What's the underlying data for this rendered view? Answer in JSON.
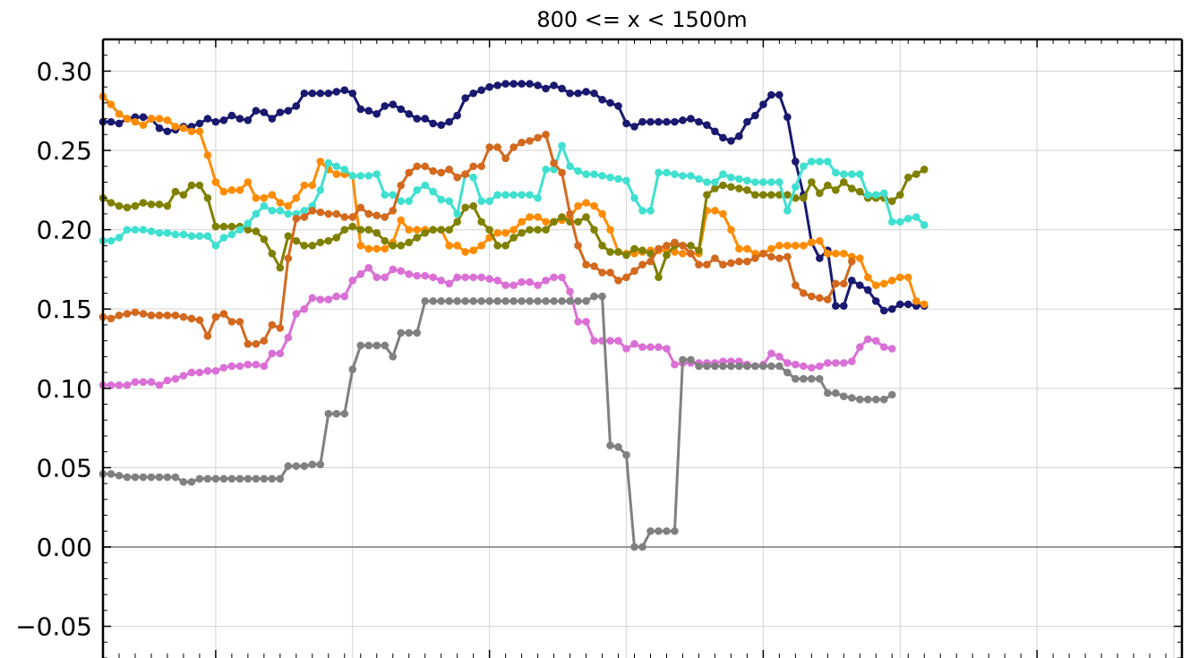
{
  "chart_data": {
    "type": "line",
    "title": "800 <= x < 1500m",
    "xlabel": "",
    "ylabel": "",
    "ylim": [
      -0.07,
      0.32
    ],
    "xlim": [
      0,
      134
    ],
    "y_ticks": [
      -0.05,
      0.0,
      0.05,
      0.1,
      0.15,
      0.2,
      0.25,
      0.3
    ],
    "y_tick_labels": [
      "−0.05",
      "0.00",
      "0.05",
      "0.10",
      "0.15",
      "0.20",
      "0.25",
      "0.30"
    ],
    "x_grid": [
      14,
      31,
      48,
      65,
      82,
      99,
      116,
      133
    ],
    "grid": true,
    "zero_line": true,
    "series": [
      {
        "color": "#191970",
        "values": [
          0.268,
          0.268,
          0.267,
          0.27,
          0.271,
          0.271,
          0.27,
          0.264,
          0.262,
          0.263,
          0.265,
          0.265,
          0.267,
          0.27,
          0.268,
          0.269,
          0.272,
          0.27,
          0.269,
          0.275,
          0.274,
          0.27,
          0.274,
          0.275,
          0.278,
          0.286,
          0.286,
          0.286,
          0.286,
          0.287,
          0.288,
          0.286,
          0.276,
          0.275,
          0.273,
          0.278,
          0.279,
          0.276,
          0.273,
          0.27,
          0.27,
          0.267,
          0.266,
          0.268,
          0.272,
          0.283,
          0.286,
          0.288,
          0.29,
          0.291,
          0.292,
          0.292,
          0.292,
          0.292,
          0.291,
          0.289,
          0.291,
          0.289,
          0.286,
          0.286,
          0.287,
          0.286,
          0.282,
          0.28,
          0.278,
          0.267,
          0.265,
          0.268,
          0.268,
          0.268,
          0.268,
          0.268,
          0.269,
          0.27,
          0.268,
          0.266,
          0.262,
          0.258,
          0.256,
          0.259,
          0.268,
          0.272,
          0.279,
          0.285,
          0.285,
          0.271,
          0.243,
          0.222,
          0.192,
          0.182,
          0.187,
          0.152,
          0.152,
          0.168,
          0.165,
          0.162,
          0.155,
          0.149,
          0.15,
          0.153,
          0.153,
          0.152,
          0.152
        ]
      },
      {
        "color": "#ff8c00",
        "values": [
          0.284,
          0.279,
          0.273,
          0.27,
          0.268,
          0.266,
          0.27,
          0.27,
          0.269,
          0.265,
          0.264,
          0.262,
          0.262,
          0.247,
          0.23,
          0.224,
          0.225,
          0.225,
          0.23,
          0.22,
          0.22,
          0.222,
          0.217,
          0.215,
          0.22,
          0.228,
          0.228,
          0.243,
          0.238,
          0.235,
          0.235,
          0.234,
          0.19,
          0.188,
          0.188,
          0.188,
          0.192,
          0.206,
          0.2,
          0.2,
          0.2,
          0.2,
          0.2,
          0.19,
          0.19,
          0.186,
          0.187,
          0.19,
          0.195,
          0.198,
          0.198,
          0.2,
          0.205,
          0.208,
          0.208,
          0.205,
          0.205,
          0.206,
          0.208,
          0.215,
          0.217,
          0.215,
          0.21,
          0.2,
          0.186,
          0.185,
          0.185,
          0.186,
          0.187,
          0.187,
          0.187,
          0.186,
          0.185,
          0.185,
          0.185,
          0.212,
          0.212,
          0.21,
          0.2,
          0.188,
          0.188,
          0.185,
          0.185,
          0.188,
          0.19,
          0.19,
          0.19,
          0.19,
          0.192,
          0.193,
          0.185,
          0.185,
          0.185,
          0.183,
          0.182,
          0.17,
          0.165,
          0.166,
          0.168,
          0.17,
          0.17,
          0.155,
          0.153
        ]
      },
      {
        "color": "#808000",
        "values": [
          0.22,
          0.217,
          0.215,
          0.214,
          0.215,
          0.217,
          0.216,
          0.216,
          0.215,
          0.224,
          0.222,
          0.228,
          0.228,
          0.22,
          0.202,
          0.202,
          0.202,
          0.202,
          0.2,
          0.199,
          0.194,
          0.185,
          0.176,
          0.196,
          0.193,
          0.19,
          0.19,
          0.192,
          0.193,
          0.195,
          0.2,
          0.202,
          0.2,
          0.2,
          0.198,
          0.193,
          0.19,
          0.19,
          0.192,
          0.195,
          0.198,
          0.2,
          0.2,
          0.2,
          0.205,
          0.214,
          0.215,
          0.205,
          0.2,
          0.19,
          0.19,
          0.195,
          0.198,
          0.2,
          0.2,
          0.2,
          0.205,
          0.208,
          0.205,
          0.205,
          0.208,
          0.2,
          0.19,
          0.186,
          0.186,
          0.184,
          0.188,
          0.187,
          0.185,
          0.17,
          0.184,
          0.19,
          0.19,
          0.19,
          0.187,
          0.222,
          0.226,
          0.228,
          0.227,
          0.226,
          0.225,
          0.222,
          0.222,
          0.222,
          0.222,
          0.222,
          0.22,
          0.22,
          0.23,
          0.223,
          0.228,
          0.225,
          0.23,
          0.226,
          0.224,
          0.22,
          0.22,
          0.22,
          0.218,
          0.222,
          0.233,
          0.235,
          0.238
        ]
      },
      {
        "color": "#40e0d0",
        "values": [
          0.193,
          0.193,
          0.195,
          0.2,
          0.2,
          0.2,
          0.199,
          0.198,
          0.198,
          0.197,
          0.197,
          0.196,
          0.196,
          0.196,
          0.19,
          0.195,
          0.197,
          0.2,
          0.204,
          0.21,
          0.215,
          0.212,
          0.212,
          0.21,
          0.21,
          0.212,
          0.215,
          0.225,
          0.242,
          0.24,
          0.238,
          0.234,
          0.234,
          0.234,
          0.235,
          0.222,
          0.222,
          0.218,
          0.218,
          0.225,
          0.228,
          0.224,
          0.219,
          0.218,
          0.21,
          0.235,
          0.233,
          0.218,
          0.218,
          0.222,
          0.222,
          0.222,
          0.222,
          0.222,
          0.22,
          0.238,
          0.238,
          0.253,
          0.24,
          0.237,
          0.235,
          0.235,
          0.234,
          0.233,
          0.232,
          0.231,
          0.22,
          0.212,
          0.212,
          0.236,
          0.236,
          0.235,
          0.234,
          0.234,
          0.232,
          0.23,
          0.23,
          0.235,
          0.233,
          0.232,
          0.231,
          0.23,
          0.23,
          0.23,
          0.23,
          0.212,
          0.227,
          0.24,
          0.243,
          0.243,
          0.243,
          0.236,
          0.235,
          0.235,
          0.235,
          0.222,
          0.222,
          0.223,
          0.205,
          0.205,
          0.207,
          0.208,
          0.203
        ]
      },
      {
        "color": "#d2691e",
        "values": [
          0.145,
          0.144,
          0.146,
          0.147,
          0.148,
          0.147,
          0.146,
          0.146,
          0.146,
          0.146,
          0.145,
          0.144,
          0.143,
          0.133,
          0.145,
          0.147,
          0.142,
          0.142,
          0.128,
          0.128,
          0.13,
          0.14,
          0.138,
          0.182,
          0.207,
          0.208,
          0.212,
          0.211,
          0.21,
          0.21,
          0.208,
          0.208,
          0.214,
          0.21,
          0.209,
          0.208,
          0.212,
          0.228,
          0.236,
          0.24,
          0.24,
          0.237,
          0.236,
          0.238,
          0.233,
          0.235,
          0.24,
          0.24,
          0.252,
          0.252,
          0.245,
          0.252,
          0.255,
          0.256,
          0.258,
          0.26,
          0.242,
          0.236,
          0.21,
          0.19,
          0.178,
          0.177,
          0.173,
          0.173,
          0.168,
          0.17,
          0.174,
          0.178,
          0.18,
          0.188,
          0.19,
          0.192,
          0.19,
          0.185,
          0.178,
          0.178,
          0.182,
          0.178,
          0.179,
          0.18,
          0.18,
          0.182,
          0.185,
          0.183,
          0.182,
          0.183,
          0.165,
          0.16,
          0.158,
          0.157,
          0.156,
          0.166,
          0.166,
          0.18
        ]
      },
      {
        "color": "#da70d6",
        "values": [
          0.102,
          0.102,
          0.102,
          0.102,
          0.104,
          0.104,
          0.104,
          0.102,
          0.105,
          0.106,
          0.108,
          0.11,
          0.11,
          0.111,
          0.111,
          0.113,
          0.114,
          0.114,
          0.115,
          0.115,
          0.114,
          0.122,
          0.122,
          0.132,
          0.147,
          0.15,
          0.157,
          0.156,
          0.156,
          0.158,
          0.158,
          0.168,
          0.172,
          0.176,
          0.17,
          0.17,
          0.175,
          0.174,
          0.172,
          0.171,
          0.171,
          0.17,
          0.168,
          0.166,
          0.17,
          0.17,
          0.17,
          0.17,
          0.169,
          0.168,
          0.165,
          0.165,
          0.167,
          0.167,
          0.165,
          0.168,
          0.17,
          0.17,
          0.161,
          0.142,
          0.142,
          0.13,
          0.13,
          0.13,
          0.13,
          0.125,
          0.128,
          0.126,
          0.126,
          0.126,
          0.125,
          0.115,
          0.116,
          0.116,
          0.116,
          0.116,
          0.116,
          0.117,
          0.117,
          0.117,
          0.115,
          0.114,
          0.115,
          0.122,
          0.12,
          0.116,
          0.115,
          0.114,
          0.113,
          0.114,
          0.116,
          0.116,
          0.116,
          0.117,
          0.126,
          0.131,
          0.13,
          0.126,
          0.125
        ]
      },
      {
        "color": "#808080",
        "values": [
          0.046,
          0.046,
          0.045,
          0.044,
          0.044,
          0.044,
          0.044,
          0.044,
          0.044,
          0.044,
          0.041,
          0.041,
          0.043,
          0.043,
          0.043,
          0.043,
          0.043,
          0.043,
          0.043,
          0.043,
          0.043,
          0.043,
          0.043,
          0.051,
          0.051,
          0.051,
          0.052,
          0.052,
          0.084,
          0.084,
          0.084,
          0.112,
          0.127,
          0.127,
          0.127,
          0.127,
          0.12,
          0.135,
          0.135,
          0.135,
          0.155,
          0.155,
          0.155,
          0.155,
          0.155,
          0.155,
          0.155,
          0.155,
          0.155,
          0.155,
          0.155,
          0.155,
          0.155,
          0.155,
          0.155,
          0.155,
          0.155,
          0.155,
          0.155,
          0.155,
          0.155,
          0.158,
          0.158,
          0.064,
          0.063,
          0.058,
          0.0,
          0.0,
          0.01,
          0.01,
          0.01,
          0.01,
          0.118,
          0.118,
          0.114,
          0.114,
          0.114,
          0.114,
          0.114,
          0.114,
          0.114,
          0.114,
          0.114,
          0.114,
          0.114,
          0.11,
          0.106,
          0.106,
          0.106,
          0.106,
          0.097,
          0.097,
          0.095,
          0.094,
          0.093,
          0.093,
          0.093,
          0.093,
          0.096
        ]
      }
    ]
  }
}
